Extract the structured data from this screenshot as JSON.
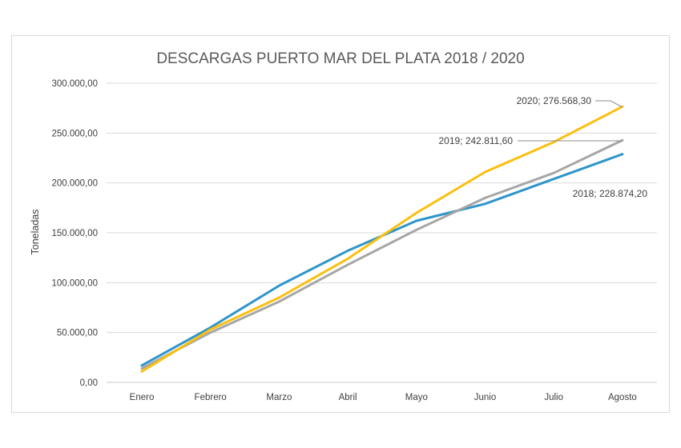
{
  "chart_data": {
    "type": "line",
    "title": "DESCARGAS PUERTO MAR DEL PLATA 2018 / 2020",
    "xlabel": "",
    "ylabel": "Toneladas",
    "ylim": [
      0,
      300000
    ],
    "yticks": [
      0,
      50000,
      100000,
      150000,
      200000,
      250000,
      300000
    ],
    "ytick_labels": [
      "0,00",
      "50.000,00",
      "100.000,00",
      "150.000,00",
      "200.000,00",
      "250.000,00",
      "300.000,00"
    ],
    "categories": [
      "Enero",
      "Febrero",
      "Marzo",
      "Abril",
      "Mayo",
      "Junio",
      "Julio",
      "Agosto"
    ],
    "grid": true,
    "legend": "none",
    "series": [
      {
        "name": "2018",
        "color": "#2e95c9",
        "values": [
          17000,
          55000,
          97000,
          132000,
          162000,
          179000,
          204000,
          228874.2
        ],
        "label": "2018; 228.874,20"
      },
      {
        "name": "2019",
        "color": "#a6a6a6",
        "values": [
          14000,
          50000,
          81000,
          118000,
          153000,
          185000,
          210000,
          242811.6
        ],
        "label": "2019; 242.811,60"
      },
      {
        "name": "2020",
        "color": "#fbbf10",
        "values": [
          11000,
          53000,
          85000,
          124000,
          170000,
          211000,
          241000,
          276568.3
        ],
        "label": "2020; 276.568,30"
      }
    ]
  }
}
